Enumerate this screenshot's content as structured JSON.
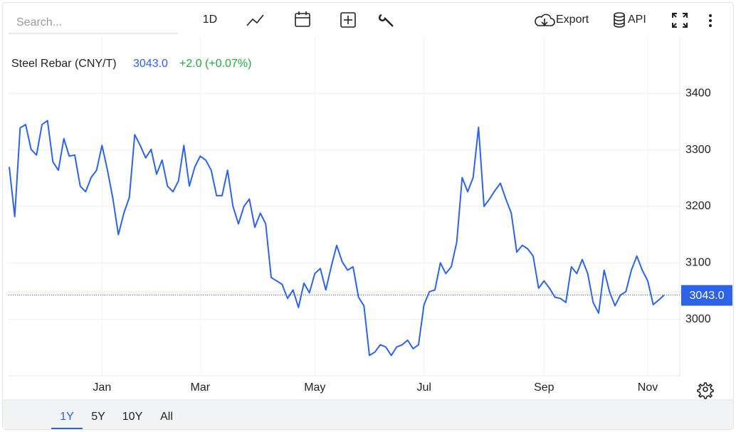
{
  "toolbar": {
    "search_placeholder": "Search...",
    "interval": "1D",
    "export": "Export",
    "api": "API"
  },
  "ranges": {
    "items": [
      "1Y",
      "5Y",
      "10Y",
      "All"
    ],
    "active": 0
  },
  "chart_data": {
    "type": "line",
    "title": "Steel Rebar (CNY/T)",
    "last_value_label": "3043.0",
    "change_label": "+2.0 (+0.07%)",
    "change_color": "#22ab3a",
    "categories": [
      null,
      null,
      null,
      null,
      null,
      null,
      null,
      null,
      null,
      null,
      null,
      null,
      null,
      null,
      null,
      null,
      null,
      "Jan",
      null,
      null,
      null,
      null,
      null,
      null,
      null,
      null,
      null,
      null,
      null,
      null,
      null,
      null,
      null,
      null,
      null,
      "Mar",
      null,
      null,
      null,
      null,
      null,
      null,
      null,
      null,
      null,
      null,
      null,
      null,
      null,
      null,
      null,
      null,
      null,
      null,
      null,
      null,
      "May",
      null,
      null,
      null,
      null,
      null,
      null,
      null,
      null,
      null,
      null,
      null,
      null,
      null,
      null,
      null,
      null,
      null,
      null,
      null,
      "Jul",
      null,
      null,
      null,
      null,
      null,
      null,
      null,
      null,
      null,
      null,
      null,
      null,
      null,
      null,
      null,
      null,
      null,
      null,
      null,
      null,
      null,
      "Sep",
      null,
      null,
      null,
      null,
      null,
      null,
      null,
      null,
      null,
      null,
      null,
      null,
      null,
      null,
      null,
      null,
      null,
      null,
      "Nov",
      null,
      null,
      null
    ],
    "series": [
      {
        "name": "Steel Rebar (CNY/T)",
        "color": "#2e62e8",
        "values": [
          3270,
          3182,
          3339,
          3345,
          3301,
          3291,
          3345,
          3352,
          3279,
          3264,
          3320,
          3289,
          3291,
          3236,
          3226,
          3251,
          3264,
          3308,
          3264,
          3213,
          3150,
          3188,
          3216,
          3327,
          3308,
          3286,
          3301,
          3257,
          3282,
          3236,
          3226,
          3245,
          3308,
          3236,
          3270,
          3289,
          3282,
          3264,
          3219,
          3219,
          3264,
          3200,
          3169,
          3200,
          3213,
          3163,
          3188,
          3169,
          3074,
          3068,
          3062,
          3037,
          3052,
          3021,
          3064,
          3047,
          3081,
          3090,
          3052,
          3093,
          3131,
          3102,
          3087,
          3093,
          3039,
          3024,
          2936,
          2942,
          2955,
          2951,
          2936,
          2951,
          2955,
          2963,
          2948,
          2955,
          3026,
          3049,
          3052,
          3100,
          3081,
          3093,
          3137,
          3251,
          3226,
          3251,
          3340,
          3200,
          3213,
          3228,
          3241,
          3213,
          3188,
          3119,
          3131,
          3125,
          3112,
          3055,
          3068,
          3055,
          3039,
          3037,
          3030,
          3093,
          3081,
          3106,
          3081,
          3030,
          3011,
          3087,
          3049,
          3024,
          3043,
          3049,
          3087,
          3112,
          3087,
          3068,
          3026,
          3034,
          3043
        ]
      }
    ],
    "ylim": [
      2900,
      3500
    ],
    "yticks": [
      3000,
      3100,
      3200,
      3300,
      3400
    ],
    "grid": true
  }
}
